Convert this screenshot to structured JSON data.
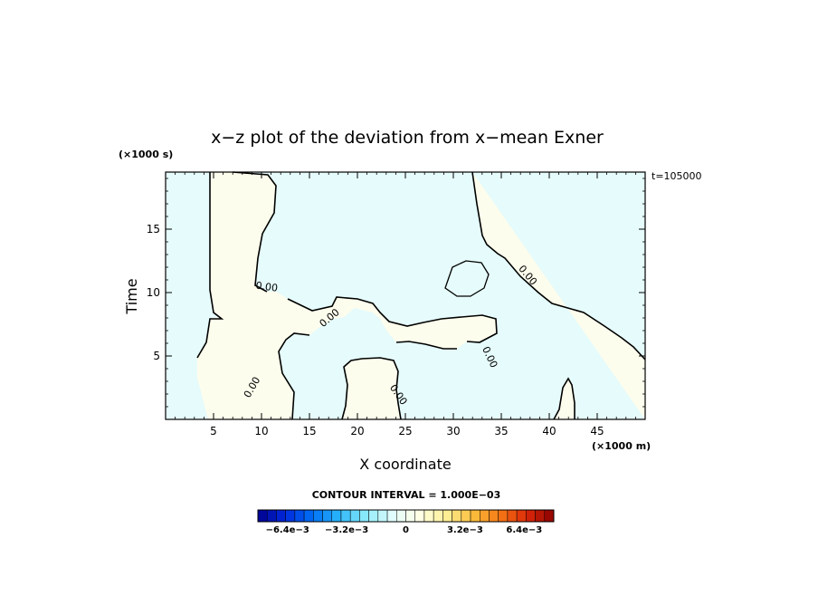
{
  "chart_data": {
    "type": "heatmap",
    "title": "x−z plot of the deviation from x−mean Exner",
    "xlabel": "X coordinate",
    "ylabel": "Time",
    "x_unit": "(×1000 m)",
    "y_unit": "(×1000 s)",
    "time_label": "t=105000",
    "xlim": [
      0,
      50
    ],
    "ylim": [
      0,
      19.5
    ],
    "x_ticks": [
      5,
      10,
      15,
      20,
      25,
      30,
      35,
      40,
      45
    ],
    "y_ticks": [
      5,
      10,
      15
    ],
    "contour_label_text": "0.00",
    "contour_labels": [
      {
        "x": 10.5,
        "y": 10.2,
        "rot": 8
      },
      {
        "x": 17.3,
        "y": 7.8,
        "rot": -40
      },
      {
        "x": 9.3,
        "y": 2.4,
        "rot": -60
      },
      {
        "x": 24.0,
        "y": 1.8,
        "rot": 55
      },
      {
        "x": 33.5,
        "y": 4.8,
        "rot": 65
      },
      {
        "x": 37.5,
        "y": 11.2,
        "rot": 50
      }
    ],
    "contour_interval_text": "CONTOUR INTERVAL = 1.000E−03",
    "colorbar": {
      "min": -0.008,
      "max": 0.008,
      "levels": 32,
      "tick_values": [
        -0.0064,
        -0.0032,
        0,
        0.0032,
        0.0064
      ],
      "tick_labels": [
        "−6.4e−3",
        "−3.2e−3",
        "0",
        "3.2e−3",
        "6.4e−3"
      ]
    },
    "colors": {
      "negative_fill": "#e6fbfb",
      "positive_fill": "#fdfded",
      "contour_line": "#000000"
    }
  }
}
